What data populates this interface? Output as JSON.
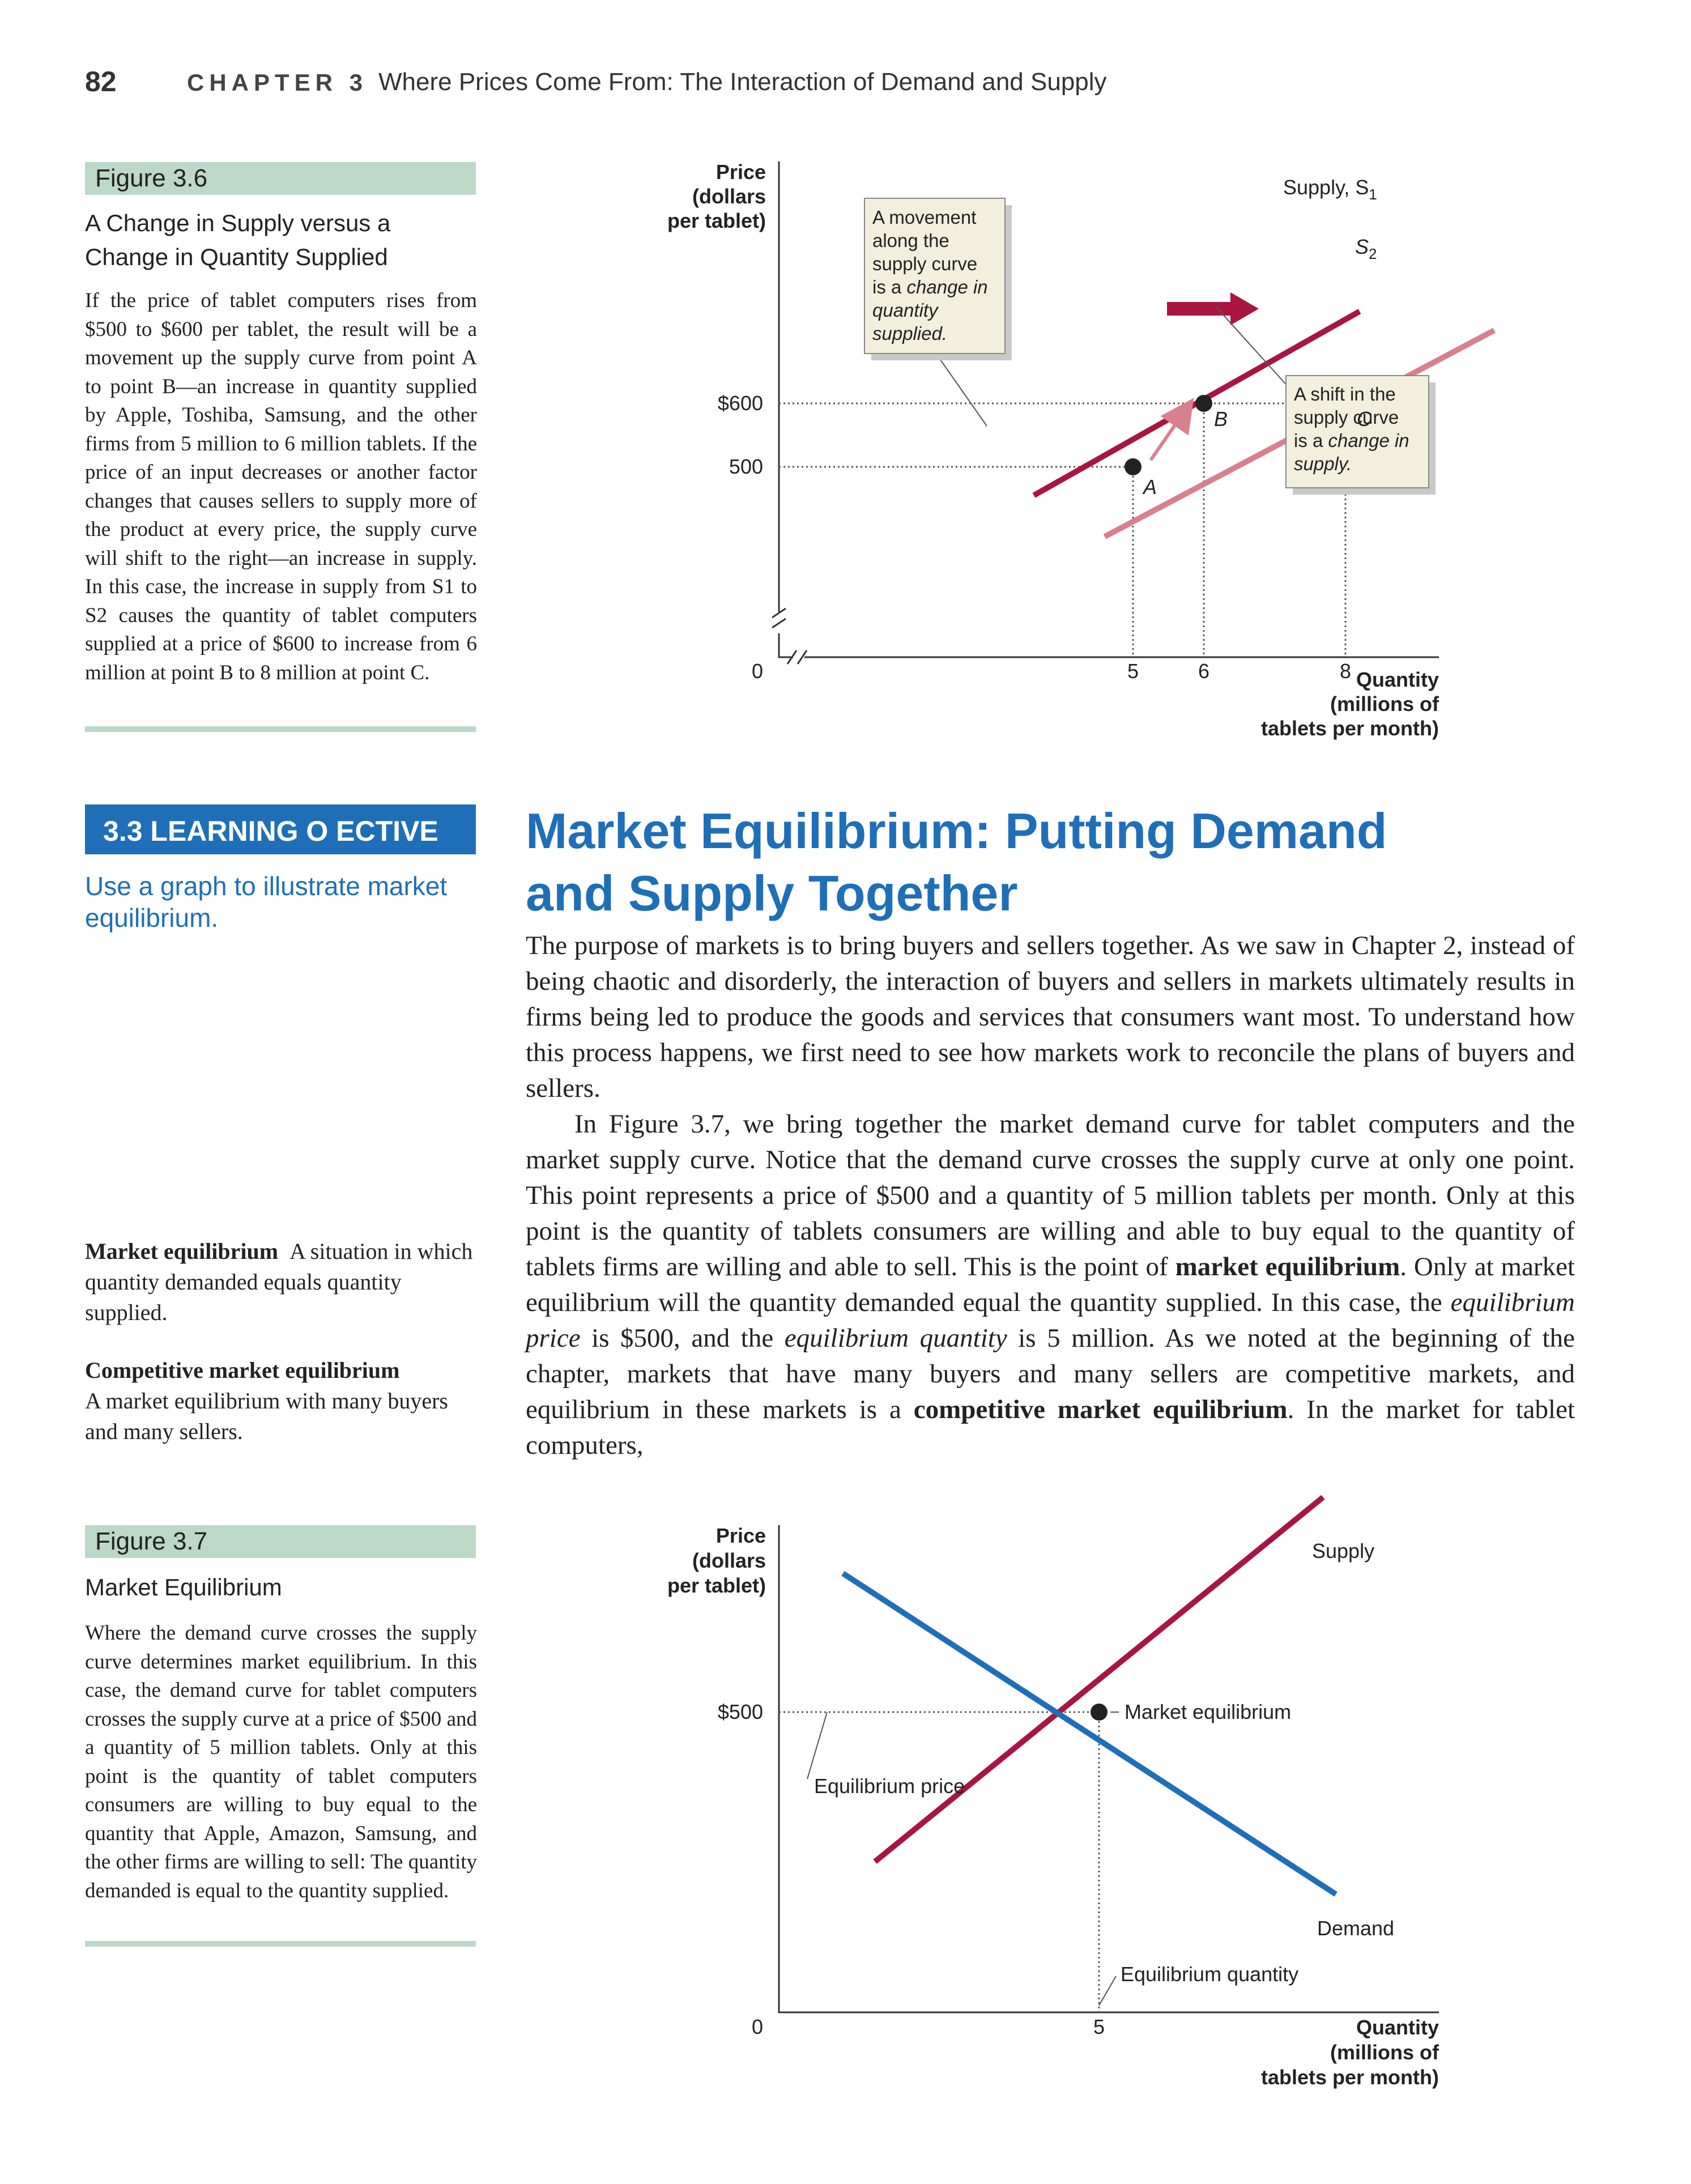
{
  "header": {
    "page_number": "82",
    "chapter_label": "CHAPTER 3",
    "chapter_title": "Where Prices Come From: The Interaction of Demand and Supply"
  },
  "figure_3_6": {
    "tab": "Figure 3.6",
    "title_line1": "A Change in Supply versus a",
    "title_line2": "Change in Quantity Supplied",
    "caption": "If the price of tablet computers rises from $500 to $600 per tablet, the result will be a movement up the supply curve from point A to point B—an increase in quantity supplied by Apple, Toshiba, Samsung, and the other firms from 5 million to 6 million tablets. If the price of an input decreases or another factor changes that causes sellers to supply more of the product at every price, the supply curve will shift to the right—an increase in supply. In this case, the increase in supply from S1 to S2 causes the quantity of tablet computers supplied at a price of $600 to increase from 6 million at point B to 8 million at point C.",
    "chart_data": {
      "type": "line",
      "ylabel_line1": "Price",
      "ylabel_line2": "(dollars",
      "ylabel_line3": "per tablet)",
      "xlabel_line1": "Quantity",
      "xlabel_line2": "(millions of",
      "xlabel_line3": "tablets per month)",
      "origin_label": "0",
      "x_ticks": [
        "5",
        "6",
        "8"
      ],
      "y_ticks": [
        "$600",
        "500"
      ],
      "series": [
        {
          "name": "Supply, S1",
          "label_main": "Supply, S",
          "label_sub": "1",
          "color": "#a8163f",
          "x": [
            3.6,
            8.2
          ],
          "y": [
            455,
            745
          ]
        },
        {
          "name": "S2",
          "label_main": "S",
          "label_sub": "2",
          "color": "#d9808e",
          "x": [
            4.6,
            10.1
          ],
          "y": [
            390,
            715
          ]
        }
      ],
      "points": [
        {
          "label": "A",
          "x": 5,
          "y": 500
        },
        {
          "label": "B",
          "x": 6,
          "y": 600
        },
        {
          "label": "C",
          "x": 8,
          "y": 600
        }
      ],
      "callout_movement": [
        "A movement",
        "along the",
        "supply curve",
        "is a change in",
        "quantity",
        "supplied."
      ],
      "callout_shift": [
        "A shift in the",
        "supply curve",
        "is a change in",
        "supply."
      ]
    }
  },
  "learning_objective": {
    "label": "3.3 LEARNING O    ECTIVE",
    "text": "Use a graph to illustrate market equilibrium."
  },
  "section": {
    "heading_line1": "Market Equilibrium: Putting Demand",
    "heading_line2": "and Supply Together",
    "para1": "The purpose of markets is to bring buyers and sellers together. As we saw in Chapter 2, instead of being chaotic and disorderly, the interaction of buyers and sellers in markets ultimately results in firms being led to produce the goods and services that consumers want most. To understand how this process happens, we first need to see how markets work to reconcile the plans of buyers and sellers.",
    "para2_a": "In Figure 3.7, we bring together the market demand curve for tablet computers and the market supply curve. Notice that the demand curve crosses the supply curve at only one point. This point represents a price of $500 and a quantity of 5 million tablets per month. Only at this point is the quantity of tablets consumers are willing and able to buy equal to the quantity of tablets firms are willing and able to sell. This is the point of ",
    "para2_term1": "market equilibrium",
    "para2_b": ". Only at market equilibrium will the quantity demanded equal the quantity supplied. In this case, the ",
    "para2_em1": "equilibrium price",
    "para2_c": " is $500, and the ",
    "para2_em2": "equilibrium quantity",
    "para2_d": " is 5 million. As we noted at the beginning of the chapter, markets that have many buyers and many sellers are competitive markets, and equilibrium in these markets is a ",
    "para2_term2": "competitive market equilibrium",
    "para2_e": ". In the market for tablet computers,"
  },
  "definitions": [
    {
      "term": "Market equilibrium",
      "text": "A situation in which quantity demanded equals quantity supplied."
    },
    {
      "term": "Competitive market equilibrium",
      "text": "A market equilibrium with many buyers and many sellers."
    }
  ],
  "figure_3_7": {
    "tab": "Figure 3.7",
    "title": "Market Equilibrium",
    "caption": "Where the demand curve crosses the supply curve determines market equilibrium. In this case, the demand curve for tablet computers crosses the supply curve at a price of $500 and a quantity of 5 million tablets. Only at this point is the quantity of tablet computers consumers are willing to buy equal to the quantity that Apple, Amazon, Samsung, and the other firms are willing to sell: The quantity demanded is equal to the quantity supplied.",
    "chart_data": {
      "type": "line",
      "ylabel_line1": "Price",
      "ylabel_line2": "(dollars",
      "ylabel_line3": "per tablet)",
      "xlabel_line1": "Quantity",
      "xlabel_line2": "(millions of",
      "xlabel_line3": "tablets per month)",
      "origin_label": "0",
      "x_ticks": [
        "5"
      ],
      "y_ticks": [
        "$500"
      ],
      "series": [
        {
          "name": "Supply",
          "color": "#a8163f",
          "x": [
            1.5,
            8.5
          ],
          "y": [
            225,
            895
          ]
        },
        {
          "name": "Demand",
          "color": "#1f6fb8",
          "x": [
            1.0,
            8.7
          ],
          "y": [
            755,
            165
          ]
        }
      ],
      "equilibrium": {
        "x": 5,
        "y": 500
      },
      "annotations": [
        "Market equilibrium",
        "Equilibrium price",
        "Equilibrium quantity"
      ]
    }
  }
}
